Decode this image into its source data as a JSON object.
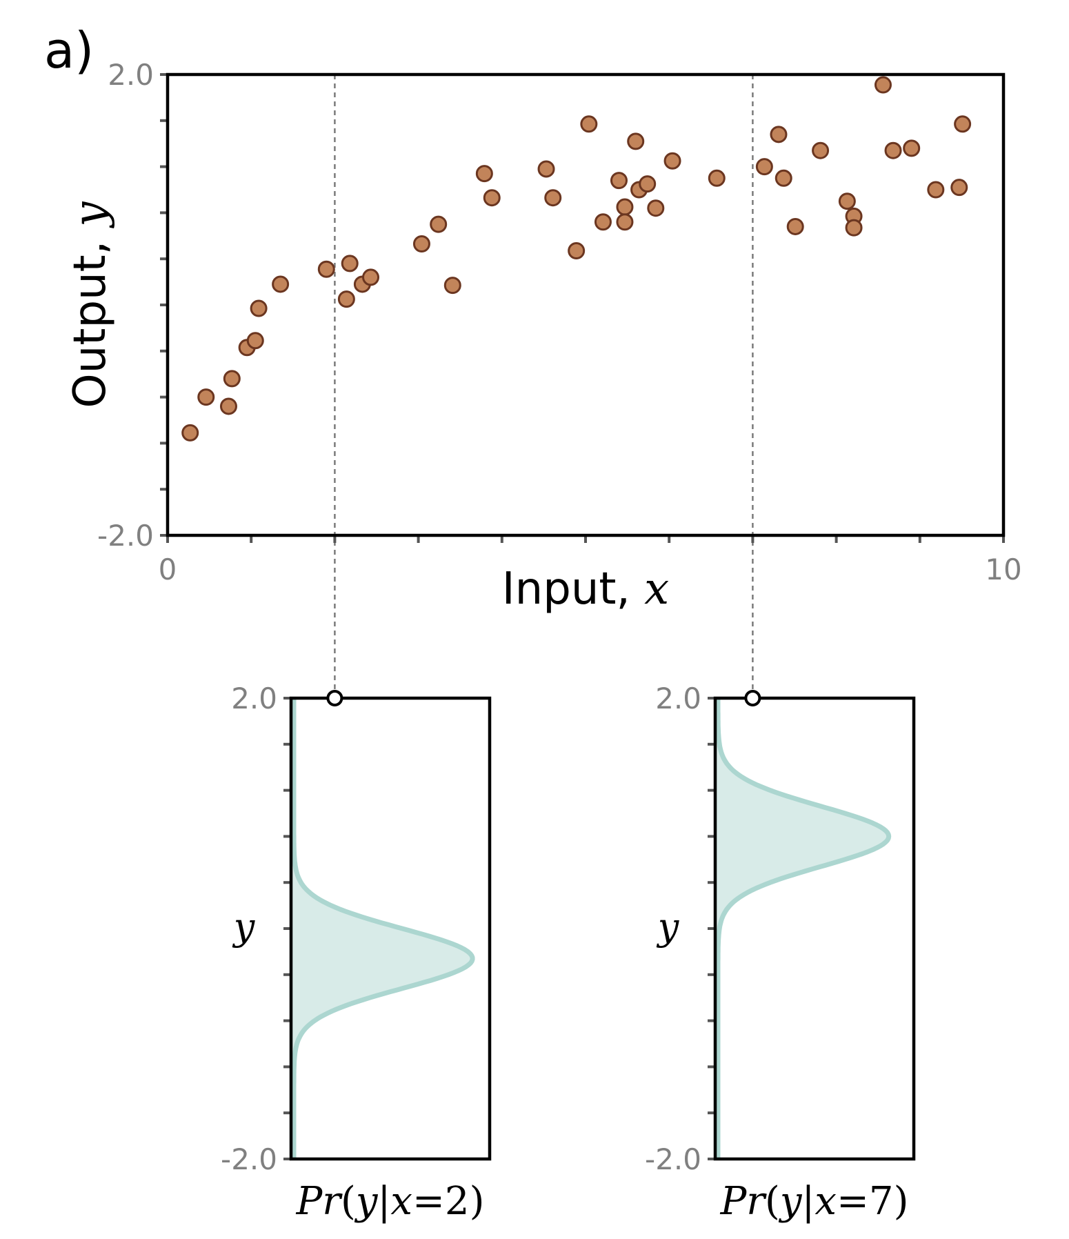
{
  "panel_label": "a)",
  "colors": {
    "frame": "#000000",
    "tick_text": "#808080",
    "tick_mark": "#555555",
    "point_fill": "#c2845a",
    "point_stroke": "#6b3620",
    "guide_line": "#7a7a7a",
    "density_fill": "#d8ebe8",
    "density_line": "#acd6d0"
  },
  "chart_data": [
    {
      "type": "scatter",
      "title": "",
      "xlabel_text": "Input, ",
      "xlabel_var": "x",
      "ylabel_text": "Output, ",
      "ylabel_var": "y",
      "xlim": [
        0,
        10
      ],
      "ylim": [
        -2.0,
        2.0
      ],
      "x_tick_labels": [
        "0",
        "10"
      ],
      "y_tick_labels": [
        "2.0",
        "-2.0"
      ],
      "x_minor_ticks": [
        0,
        1,
        2,
        3,
        4,
        5,
        6,
        7,
        8,
        9,
        10
      ],
      "y_minor_ticks": [
        -2.0,
        -1.6,
        -1.2,
        -0.8,
        -0.4,
        0.0,
        0.4,
        0.8,
        1.2,
        1.6,
        2.0
      ],
      "guide_lines_x": [
        2,
        7
      ],
      "grid": false,
      "points": [
        {
          "x": 0.27,
          "y": -1.11
        },
        {
          "x": 0.46,
          "y": -0.8
        },
        {
          "x": 0.73,
          "y": -0.88
        },
        {
          "x": 0.77,
          "y": -0.64
        },
        {
          "x": 0.95,
          "y": -0.37
        },
        {
          "x": 1.05,
          "y": -0.31
        },
        {
          "x": 1.09,
          "y": -0.03
        },
        {
          "x": 1.35,
          "y": 0.18
        },
        {
          "x": 1.9,
          "y": 0.31
        },
        {
          "x": 2.14,
          "y": 0.05
        },
        {
          "x": 2.18,
          "y": 0.36
        },
        {
          "x": 2.33,
          "y": 0.18
        },
        {
          "x": 2.43,
          "y": 0.24
        },
        {
          "x": 3.04,
          "y": 0.53
        },
        {
          "x": 3.24,
          "y": 0.7
        },
        {
          "x": 3.41,
          "y": 0.17
        },
        {
          "x": 3.79,
          "y": 1.14
        },
        {
          "x": 3.88,
          "y": 0.93
        },
        {
          "x": 4.53,
          "y": 1.18
        },
        {
          "x": 4.61,
          "y": 0.93
        },
        {
          "x": 4.89,
          "y": 0.47
        },
        {
          "x": 5.04,
          "y": 1.57
        },
        {
          "x": 5.21,
          "y": 0.72
        },
        {
          "x": 5.4,
          "y": 1.08
        },
        {
          "x": 5.47,
          "y": 0.85
        },
        {
          "x": 5.47,
          "y": 0.72
        },
        {
          "x": 5.6,
          "y": 1.42
        },
        {
          "x": 5.64,
          "y": 1.0
        },
        {
          "x": 5.74,
          "y": 1.05
        },
        {
          "x": 5.84,
          "y": 0.84
        },
        {
          "x": 6.04,
          "y": 1.25
        },
        {
          "x": 6.57,
          "y": 1.1
        },
        {
          "x": 7.14,
          "y": 1.2
        },
        {
          "x": 7.31,
          "y": 1.48
        },
        {
          "x": 7.37,
          "y": 1.1
        },
        {
          "x": 7.51,
          "y": 0.68
        },
        {
          "x": 7.81,
          "y": 1.34
        },
        {
          "x": 8.13,
          "y": 0.9
        },
        {
          "x": 8.21,
          "y": 0.77
        },
        {
          "x": 8.21,
          "y": 0.67
        },
        {
          "x": 8.56,
          "y": 1.91
        },
        {
          "x": 8.68,
          "y": 1.34
        },
        {
          "x": 8.9,
          "y": 1.36
        },
        {
          "x": 9.19,
          "y": 1.0
        },
        {
          "x": 9.47,
          "y": 1.02
        },
        {
          "x": 9.51,
          "y": 1.57
        }
      ]
    },
    {
      "type": "area",
      "label": "Pr(y|x=2)",
      "label_parts": [
        "Pr",
        "(",
        "y",
        "|",
        "x",
        "=",
        "2",
        ")"
      ],
      "axis_label": "y",
      "condition_x": 2,
      "ylim": [
        -2.0,
        2.0
      ],
      "y_tick_labels": [
        "2.0",
        "-2.0"
      ],
      "y_minor_ticks": [
        -2.0,
        -1.6,
        -1.2,
        -0.8,
        -0.4,
        0.0,
        0.4,
        0.8,
        1.2,
        1.6,
        2.0
      ],
      "mean": -0.26,
      "std": 0.26,
      "peak_density_fraction": 0.9
    },
    {
      "type": "area",
      "label": "Pr(y|x=7)",
      "label_parts": [
        "Pr",
        "(",
        "y",
        "|",
        "x",
        "=",
        "7",
        ")"
      ],
      "axis_label": "y",
      "condition_x": 7,
      "ylim": [
        -2.0,
        2.0
      ],
      "y_tick_labels": [
        "2.0",
        "-2.0"
      ],
      "y_minor_ticks": [
        -2.0,
        -1.6,
        -1.2,
        -0.8,
        -0.4,
        0.0,
        0.4,
        0.8,
        1.2,
        1.6,
        2.0
      ],
      "mean": 0.8,
      "std": 0.26,
      "peak_density_fraction": 0.86
    }
  ]
}
